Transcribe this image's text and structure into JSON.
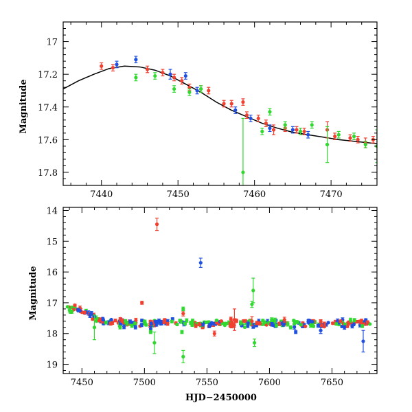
{
  "colors": {
    "blue": "#1f4fe0",
    "red": "#f04030",
    "green": "#30d830",
    "fit": "#000000"
  },
  "chart_data": [
    {
      "type": "scatter",
      "xlabel": "",
      "ylabel": "Magnitude",
      "xlim": [
        7435,
        7476
      ],
      "ylim": [
        17.88,
        16.88
      ],
      "y_inverted": true,
      "xticks": [
        7440,
        7450,
        7460,
        7470
      ],
      "yticks": [
        17,
        17.2,
        17.4,
        17.6,
        17.8
      ],
      "ytick_labels": [
        "17",
        "17.2",
        "17.4",
        "17.6",
        "17.8"
      ],
      "fit_curve": [
        [
          7435,
          17.29
        ],
        [
          7437,
          17.24
        ],
        [
          7439,
          17.2
        ],
        [
          7441,
          17.165
        ],
        [
          7443,
          17.15
        ],
        [
          7445,
          17.155
        ],
        [
          7447,
          17.175
        ],
        [
          7449,
          17.21
        ],
        [
          7451,
          17.26
        ],
        [
          7453,
          17.31
        ],
        [
          7455,
          17.37
        ],
        [
          7457,
          17.42
        ],
        [
          7459,
          17.46
        ],
        [
          7461,
          17.5
        ],
        [
          7463,
          17.53
        ],
        [
          7465,
          17.555
        ],
        [
          7467,
          17.57
        ],
        [
          7469,
          17.585
        ],
        [
          7471,
          17.6
        ],
        [
          7473,
          17.61
        ],
        [
          7476,
          17.625
        ]
      ],
      "series": [
        {
          "color_key": "blue",
          "points": [
            [
              7442,
              17.14,
              0.02
            ],
            [
              7444.5,
              17.11,
              0.02
            ],
            [
              7449,
              17.2,
              0.03
            ],
            [
              7451,
              17.21,
              0.02
            ],
            [
              7452.5,
              17.3,
              0.02
            ],
            [
              7457.5,
              17.42,
              0.02
            ],
            [
              7459.5,
              17.47,
              0.02
            ],
            [
              7462,
              17.53,
              0.02
            ],
            [
              7465,
              17.54,
              0.02
            ],
            [
              7467,
              17.57,
              0.02
            ]
          ]
        },
        {
          "color_key": "red",
          "points": [
            [
              7440,
              17.15,
              0.02
            ],
            [
              7441.5,
              17.16,
              0.02
            ],
            [
              7446,
              17.17,
              0.02
            ],
            [
              7448,
              17.19,
              0.02
            ],
            [
              7449.5,
              17.22,
              0.02
            ],
            [
              7450.5,
              17.24,
              0.02
            ],
            [
              7451.5,
              17.28,
              0.02
            ],
            [
              7453,
              17.29,
              0.02
            ],
            [
              7454,
              17.3,
              0.02
            ],
            [
              7456,
              17.38,
              0.02
            ],
            [
              7457,
              17.38,
              0.02
            ],
            [
              7458.5,
              17.37,
              0.02
            ],
            [
              7459,
              17.45,
              0.02
            ],
            [
              7460.5,
              17.47,
              0.02
            ],
            [
              7461.5,
              17.5,
              0.02
            ],
            [
              7462.5,
              17.54,
              0.03
            ],
            [
              7464,
              17.53,
              0.02
            ],
            [
              7465.5,
              17.54,
              0.02
            ],
            [
              7466.5,
              17.55,
              0.02
            ],
            [
              7469.5,
              17.54,
              0.05
            ],
            [
              7470.5,
              17.58,
              0.02
            ],
            [
              7472.5,
              17.59,
              0.02
            ],
            [
              7473.5,
              17.6,
              0.02
            ],
            [
              7474.5,
              17.62,
              0.03
            ],
            [
              7475.5,
              17.6,
              0.02
            ]
          ]
        },
        {
          "color_key": "green",
          "points": [
            [
              7444.5,
              17.22,
              0.02
            ],
            [
              7447,
              17.21,
              0.02
            ],
            [
              7449.5,
              17.29,
              0.02
            ],
            [
              7451.5,
              17.31,
              0.02
            ],
            [
              7453,
              17.29,
              0.02
            ],
            [
              7458.5,
              17.8,
              0.33
            ],
            [
              7461,
              17.55,
              0.02
            ],
            [
              7462,
              17.43,
              0.02
            ],
            [
              7464,
              17.51,
              0.02
            ],
            [
              7466,
              17.55,
              0.02
            ],
            [
              7467.5,
              17.51,
              0.02
            ],
            [
              7469.5,
              17.63,
              0.11
            ],
            [
              7471,
              17.57,
              0.02
            ],
            [
              7473,
              17.58,
              0.02
            ],
            [
              7474.5,
              17.63,
              0.02
            ],
            [
              7476,
              17.64,
              0.1
            ]
          ]
        }
      ]
    },
    {
      "type": "scatter",
      "xlabel": "HJD−2450000",
      "ylabel": "Magnitude",
      "xlim": [
        7435,
        7686
      ],
      "ylim": [
        19.3,
        13.9
      ],
      "y_inverted": true,
      "xticks": [
        7450,
        7500,
        7550,
        7600,
        7650
      ],
      "yticks": [
        14,
        15,
        16,
        17,
        18,
        19
      ],
      "ytick_labels": [
        "14",
        "15",
        "16",
        "17",
        "18",
        "19"
      ],
      "baseline_band": {
        "x_start": 7438,
        "x_end": 7683,
        "trend": [
          [
            7438,
            17.2
          ],
          [
            7445,
            17.17
          ],
          [
            7452,
            17.3
          ],
          [
            7460,
            17.5
          ],
          [
            7470,
            17.6
          ],
          [
            7480,
            17.65
          ],
          [
            7683,
            17.68
          ]
        ],
        "scatter_mag": 0.09,
        "n_points": 320
      },
      "series": [
        {
          "color_key": "blue",
          "points": [
            [
              7545,
              15.7,
              0.15
            ],
            [
              7675,
              18.25,
              0.35
            ],
            [
              7641,
              17.9,
              0.1
            ],
            [
              7505,
              17.85,
              0.08
            ],
            [
              7552,
              17.75,
              0.06
            ],
            [
              7587,
              17.75,
              0.08
            ],
            [
              7602,
              17.7,
              0.06
            ],
            [
              7621,
              17.95,
              0.05
            ],
            [
              7660,
              17.8,
              0.06
            ],
            [
              7467,
              17.55,
              0.03
            ]
          ]
        },
        {
          "color_key": "red",
          "points": [
            [
              7510,
              14.45,
              0.2
            ],
            [
              7498,
              17.0,
              0.05
            ],
            [
              7556,
              18.0,
              0.08
            ],
            [
              7572,
              17.55,
              0.35
            ],
            [
              7586,
              17.6,
              0.15
            ],
            [
              7531,
              17.35,
              0.08
            ],
            [
              7516,
              17.6,
              0.05
            ],
            [
              7612,
              17.55,
              0.08
            ],
            [
              7641,
              17.6,
              0.05
            ]
          ]
        },
        {
          "color_key": "green",
          "points": [
            [
              7531,
              18.75,
              0.2
            ],
            [
              7587,
              16.6,
              0.4
            ],
            [
              7586,
              17.05,
              0.1
            ],
            [
              7531,
              17.2,
              0.06
            ],
            [
              7508,
              18.3,
              0.35
            ],
            [
              7460,
              17.8,
              0.4
            ],
            [
              7505,
              17.95,
              0.05
            ],
            [
              7530,
              17.95,
              0.05
            ],
            [
              7588,
              18.3,
              0.12
            ],
            [
              7490,
              17.75,
              0.05
            ],
            [
              7617,
              17.8,
              0.05
            ],
            [
              7537,
              17.65,
              0.05
            ]
          ]
        }
      ]
    }
  ]
}
